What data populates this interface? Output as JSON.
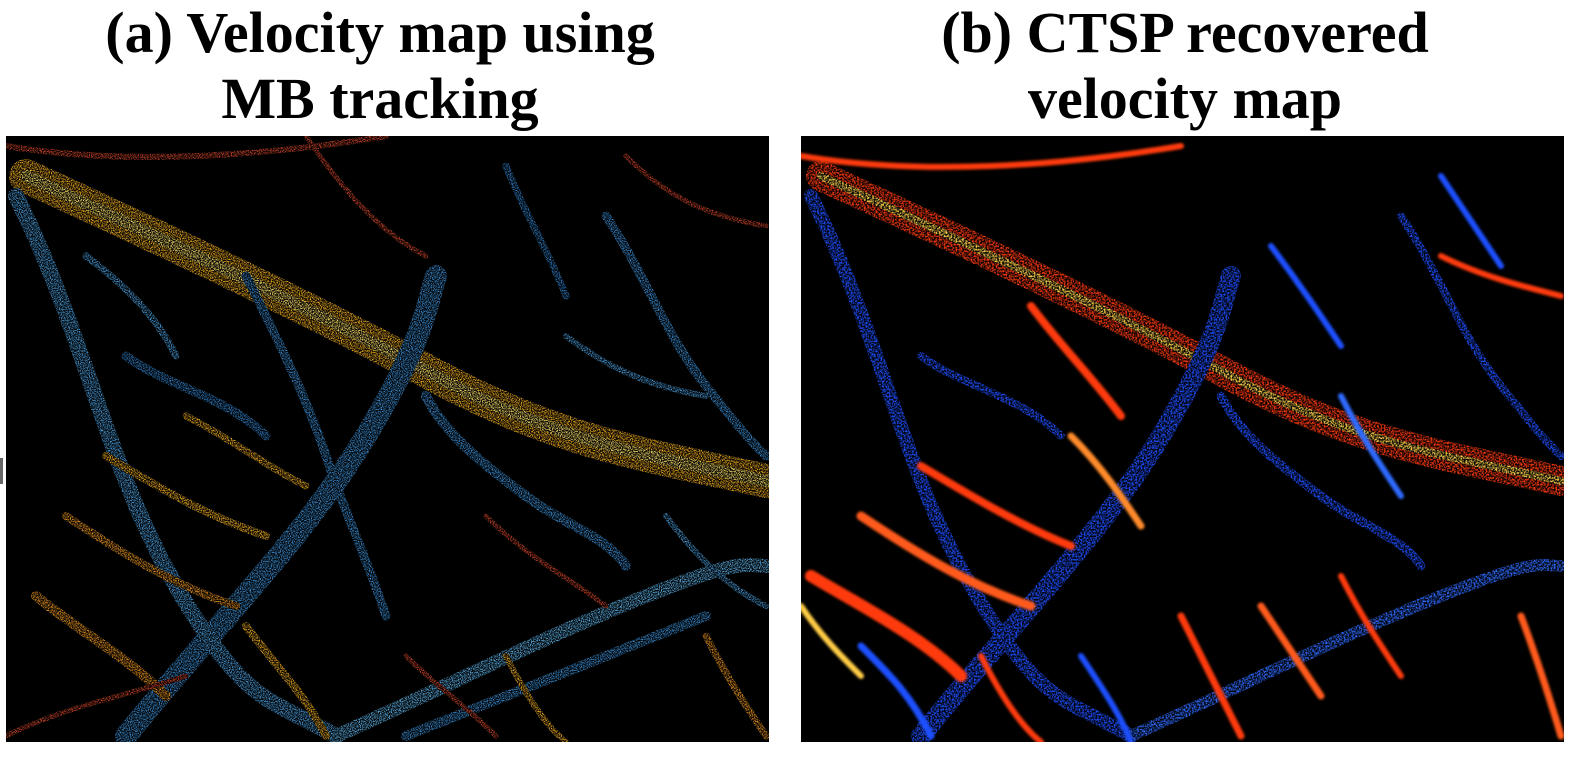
{
  "panels": [
    {
      "id": "a",
      "title_line1": "(a) Velocity map using",
      "title_line2": "MB tracking",
      "colors": {
        "background": "#000000",
        "positive": "#f7b21e",
        "negative": "#3a8fd6",
        "mixed": "#d2452a"
      }
    },
    {
      "id": "b",
      "title_line1": "(b) CTSP recovered",
      "title_line2": "velocity map",
      "colors": {
        "background": "#000000",
        "positive": "#ff3a10",
        "negative": "#1f4fff",
        "highlight": "#ffd34d"
      }
    }
  ]
}
